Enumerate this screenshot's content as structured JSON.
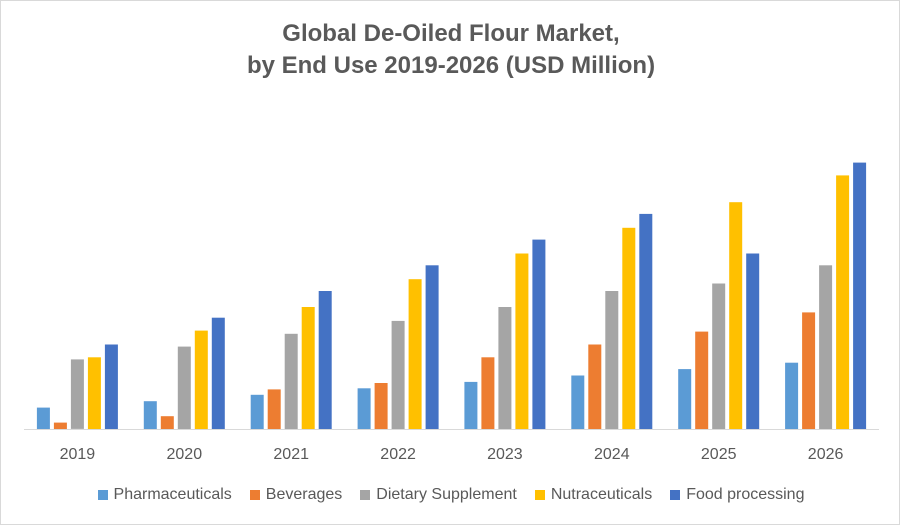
{
  "chart_data": {
    "type": "bar",
    "title_line1": "Global De-Oiled Flour Market,",
    "title_line2": "by End Use 2019-2026 (USD Million)",
    "xlabel": "",
    "ylabel": "",
    "ylim": [
      0,
      300
    ],
    "grid": false,
    "legend_position": "bottom",
    "categories": [
      "2019",
      "2020",
      "2021",
      "2022",
      "2023",
      "2024",
      "2025",
      "2026"
    ],
    "series": [
      {
        "name": "Pharmaceuticals",
        "color": "#5B9BD5",
        "values": [
          20,
          26,
          32,
          38,
          44,
          50,
          56,
          62
        ]
      },
      {
        "name": "Beverages",
        "color": "#ED7D31",
        "values": [
          6,
          12,
          37,
          43,
          67,
          79,
          91,
          109
        ]
      },
      {
        "name": "Dietary Supplement",
        "color": "#A5A5A5",
        "values": [
          65,
          77,
          89,
          101,
          114,
          129,
          136,
          153
        ]
      },
      {
        "name": "Nutraceuticals",
        "color": "#FFC000",
        "values": [
          67,
          92,
          114,
          140,
          164,
          188,
          212,
          237
        ]
      },
      {
        "name": "Food processing",
        "color": "#4472C4",
        "values": [
          79,
          104,
          129,
          153,
          177,
          201,
          164,
          249
        ]
      }
    ]
  }
}
